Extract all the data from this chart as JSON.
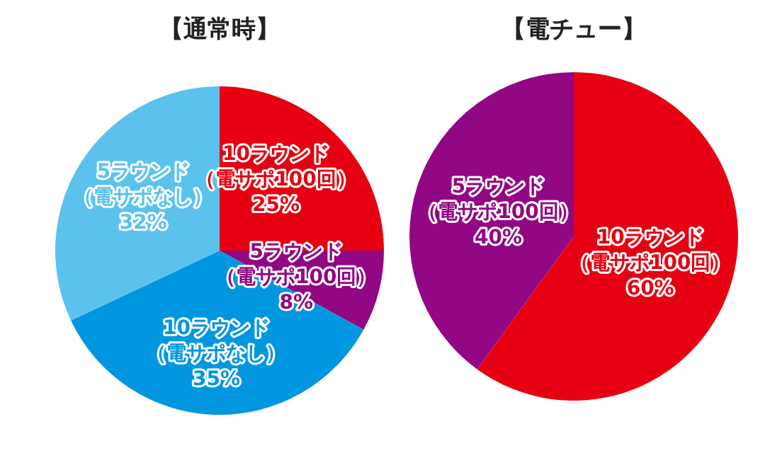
{
  "chart_data": [
    {
      "type": "pie",
      "title": "【通常時】",
      "categories": [
        "10ラウンド（電サポ100回）",
        "5ラウンド（電サポ100回）",
        "10ラウンド（電サポなし）",
        "5ラウンド（電サポなし）"
      ],
      "values": [
        25,
        8,
        35,
        32
      ],
      "value_labels": [
        "25%",
        "8%",
        "35%",
        "32%"
      ],
      "colors": [
        "#e60012",
        "#920783",
        "#0097e0",
        "#5bc2ee"
      ]
    },
    {
      "type": "pie",
      "title": "【電チュー】",
      "categories": [
        "10ラウンド（電サポ100回）",
        "5ラウンド（電サポ100回）"
      ],
      "values": [
        60,
        40
      ],
      "value_labels": [
        "60%",
        "40%"
      ],
      "colors": [
        "#e60012",
        "#920783"
      ]
    }
  ]
}
